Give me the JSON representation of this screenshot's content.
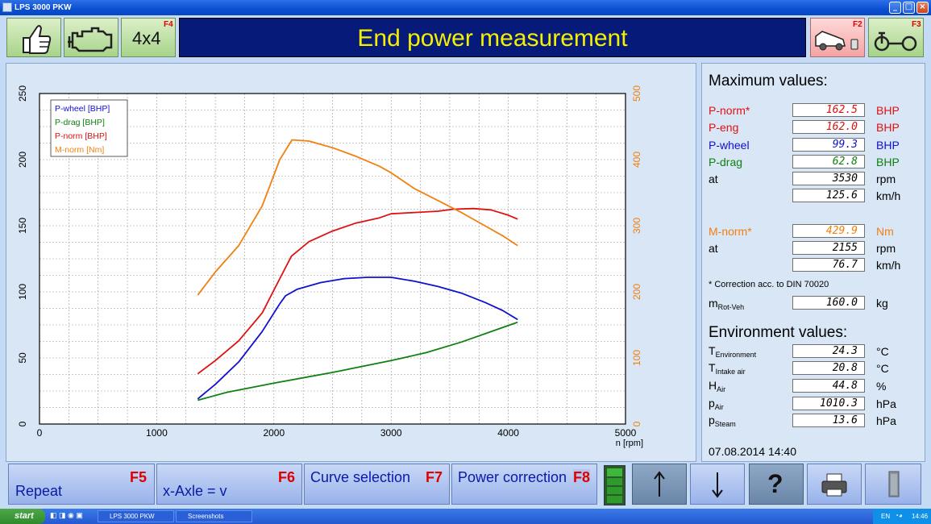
{
  "window": {
    "title": "LPS 3000 PKW"
  },
  "header": {
    "title": "End power measurement",
    "buttons": [
      {
        "icon": "thumbs-up-icon",
        "fkey": ""
      },
      {
        "icon": "engine-icon",
        "fkey": ""
      },
      {
        "label": "4x4",
        "fkey": "F4"
      },
      {
        "icon": "car-on-dyno-icon",
        "fkey": "F2"
      },
      {
        "icon": "roller-dyno-icon",
        "fkey": "F3"
      }
    ]
  },
  "chart_data": {
    "type": "line",
    "xlabel": "n [rpm]",
    "xlim": [
      0,
      5000
    ],
    "ylim_left": [
      0,
      250
    ],
    "ylim_right": [
      0,
      500
    ],
    "x_ticks": [
      "0",
      "1000",
      "2000",
      "3000",
      "4000",
      "5000"
    ],
    "y_ticks_left": [
      "0",
      "50",
      "100",
      "150",
      "200",
      "250"
    ],
    "y_ticks_right": [
      "0",
      "100",
      "200",
      "300",
      "400",
      "500"
    ],
    "grid": true,
    "legend_position": "top-left",
    "series": [
      {
        "name": "P-wheel [BHP]",
        "color": "#1010d0",
        "axis": "left",
        "x": [
          1350,
          1500,
          1700,
          1900,
          2050,
          2100,
          2200,
          2400,
          2600,
          2800,
          3000,
          3200,
          3400,
          3600,
          3800,
          3950,
          4080
        ],
        "y": [
          19,
          30,
          47,
          70,
          91,
          97,
          102,
          107,
          110,
          111,
          111,
          108,
          104,
          99,
          92,
          86,
          79
        ]
      },
      {
        "name": "P-drag [BHP]",
        "color": "#108010",
        "axis": "left",
        "x": [
          1350,
          1600,
          2000,
          2500,
          3000,
          3300,
          3600,
          4080
        ],
        "y": [
          18,
          24,
          31,
          39,
          48,
          54,
          62,
          77
        ]
      },
      {
        "name": "P-norm [BHP]",
        "color": "#e01010",
        "axis": "left",
        "x": [
          1350,
          1500,
          1700,
          1900,
          2050,
          2150,
          2300,
          2500,
          2700,
          2900,
          3000,
          3200,
          3400,
          3530,
          3700,
          3850,
          4000,
          4080
        ],
        "y": [
          38,
          48,
          63,
          84,
          110,
          127,
          138,
          146,
          152,
          156,
          159,
          160,
          161,
          162.5,
          163,
          162,
          158,
          155
        ]
      },
      {
        "name": "M-norm [Nm]",
        "color": "#f08010",
        "axis": "right",
        "x": [
          1350,
          1500,
          1700,
          1900,
          2050,
          2155,
          2300,
          2500,
          2700,
          2900,
          3000,
          3200,
          3400,
          3600,
          3800,
          3950,
          4080
        ],
        "y": [
          195,
          230,
          270,
          330,
          400,
          429.9,
          428,
          418,
          405,
          390,
          380,
          356,
          338,
          320,
          300,
          285,
          270
        ]
      }
    ]
  },
  "values": {
    "max_title": "Maximum values:",
    "rows": [
      {
        "label": "P-norm*",
        "value": "162.5",
        "unit": "BHP",
        "color": "#e01010"
      },
      {
        "label": "P-eng",
        "value": "162.0",
        "unit": "BHP",
        "color": "#e01010"
      },
      {
        "label": "P-wheel",
        "value": "99.3",
        "unit": "BHP",
        "color": "#1010d0"
      },
      {
        "label": "P-drag",
        "value": "62.8",
        "unit": "BHP",
        "color": "#108010"
      },
      {
        "label": "at",
        "value": "3530",
        "unit": "rpm",
        "color": "#000000"
      },
      {
        "label": "",
        "value": "125.6",
        "unit": "km/h",
        "color": "#000000"
      }
    ],
    "mrows": [
      {
        "label": "M-norm*",
        "value": "429.9",
        "unit": "Nm",
        "color": "#f08010"
      },
      {
        "label": "at",
        "value": "2155",
        "unit": "rpm",
        "color": "#000000"
      },
      {
        "label": "",
        "value": "76.7",
        "unit": "km/h",
        "color": "#000000"
      }
    ],
    "correction_note": "* Correction acc. to DIN 70020",
    "mrot": {
      "label_main": "m",
      "label_sub": "Rot-Veh",
      "value": "160.0",
      "unit": "kg"
    },
    "env_title": "Environment values:",
    "env": [
      {
        "main": "T",
        "sub": "Environment",
        "value": "24.3",
        "unit": "°C"
      },
      {
        "main": "T",
        "sub": "Intake air",
        "value": "20.8",
        "unit": "°C"
      },
      {
        "main": "H",
        "sub": "Air",
        "value": "44.8",
        "unit": "%"
      },
      {
        "main": "p",
        "sub": "Air",
        "value": "1010.3",
        "unit": "hPa"
      },
      {
        "main": "p",
        "sub": "Steam",
        "value": "13.6",
        "unit": "hPa"
      }
    ],
    "datetime": "07.08.2014  14:40"
  },
  "bottom": {
    "repeat": {
      "label": "Repeat",
      "fkey": "F5"
    },
    "xaxle": {
      "label": "x-Axle = v",
      "fkey": "F6"
    },
    "curve": {
      "label": "Curve selection",
      "fkey": "F7"
    },
    "power": {
      "label": "Power correction",
      "fkey": "F8"
    },
    "icons": [
      "up-arrow-icon",
      "down-arrow-icon",
      "help-icon",
      "printer-icon",
      "door-icon"
    ]
  },
  "taskbar": {
    "start": "start",
    "tasks": [
      "LPS 3000 PKW",
      "Screenshots"
    ],
    "lang": "EN",
    "clock": "14:46"
  }
}
